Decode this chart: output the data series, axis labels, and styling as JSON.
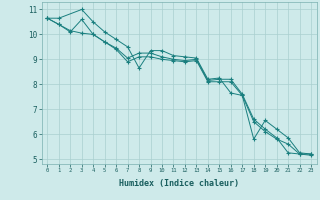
{
  "xlabel": "Humidex (Indice chaleur)",
  "xlim": [
    -0.5,
    23.5
  ],
  "ylim": [
    4.8,
    11.3
  ],
  "yticks": [
    5,
    6,
    7,
    8,
    9,
    10,
    11
  ],
  "xticks": [
    0,
    1,
    2,
    3,
    4,
    5,
    6,
    7,
    8,
    9,
    10,
    11,
    12,
    13,
    14,
    15,
    16,
    17,
    18,
    19,
    20,
    21,
    22,
    23
  ],
  "background_color": "#ceeaea",
  "grid_color": "#aacfcf",
  "line_color": "#1a7f7f",
  "series": [
    {
      "x": [
        0,
        1,
        3,
        4,
        5,
        6,
        7,
        8,
        9,
        10,
        11,
        12,
        13,
        14,
        15,
        16,
        17,
        18,
        19,
        20,
        21,
        22,
        23
      ],
      "y": [
        10.65,
        10.65,
        11.0,
        10.5,
        10.1,
        9.8,
        9.5,
        8.65,
        9.35,
        9.35,
        9.15,
        9.1,
        9.05,
        8.2,
        8.25,
        7.65,
        7.55,
        5.8,
        6.55,
        6.2,
        5.85,
        5.25,
        5.2
      ]
    },
    {
      "x": [
        0,
        1,
        2,
        3,
        4,
        5,
        6,
        7,
        8,
        9,
        10,
        11,
        12,
        13,
        14,
        15,
        16,
        17,
        18,
        19,
        20,
        21,
        22,
        23
      ],
      "y": [
        10.65,
        10.4,
        10.15,
        10.05,
        10.0,
        9.7,
        9.45,
        9.05,
        9.25,
        9.25,
        9.1,
        9.0,
        8.95,
        9.0,
        8.15,
        8.2,
        8.2,
        7.6,
        6.6,
        6.2,
        5.85,
        5.25,
        5.2,
        5.2
      ]
    },
    {
      "x": [
        0,
        1,
        2,
        3,
        4,
        5,
        6,
        7,
        8,
        9,
        10,
        11,
        12,
        13,
        14,
        15,
        16,
        17,
        18,
        19,
        20,
        21,
        22,
        23
      ],
      "y": [
        10.65,
        10.4,
        10.1,
        10.6,
        10.0,
        9.7,
        9.4,
        8.9,
        9.1,
        9.1,
        9.0,
        8.95,
        8.9,
        8.95,
        8.1,
        8.1,
        8.1,
        7.55,
        6.5,
        6.1,
        5.8,
        5.6,
        5.2,
        5.15
      ]
    }
  ]
}
